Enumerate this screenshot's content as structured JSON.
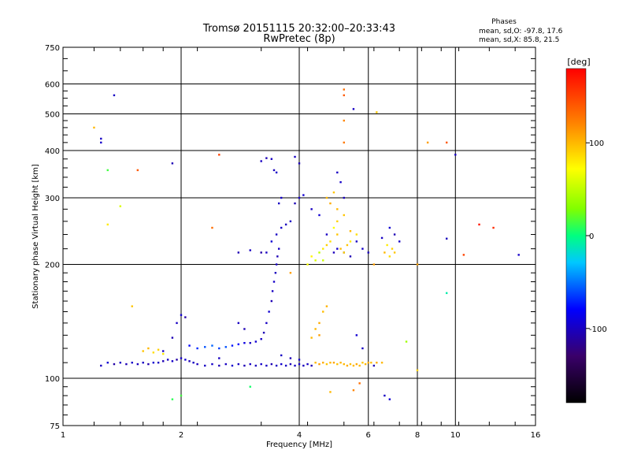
{
  "chart_data": {
    "type": "scatter",
    "title": "Tromsø 20151115 20:32:00–20:33:43",
    "subtitle": "RwPretec (8p)",
    "xlabel": "Frequency [MHz]",
    "ylabel": "Stationary phase Virtual Height [km]",
    "x_scale": "log",
    "y_scale": "log",
    "xlim": [
      1,
      16
    ],
    "ylim": [
      75,
      750
    ],
    "x_ticks": [
      1,
      2,
      4,
      6,
      8,
      10,
      16
    ],
    "x_tick_labels": [
      "1",
      "2",
      "4",
      "6",
      "8",
      "10",
      "16"
    ],
    "y_ticks": [
      75,
      100,
      200,
      300,
      400,
      500,
      600,
      750
    ],
    "y_tick_labels": [
      "75",
      "100",
      "200",
      "300",
      "400",
      "500",
      "600",
      "750"
    ],
    "grid": true,
    "legend": {
      "title": "Phases",
      "entries": [
        "mean, sd,O: -97.8, 17.6",
        "mean, sd,X: 85.8, 21.5"
      ],
      "placement": "top-right"
    },
    "colorbar": {
      "label": "[deg]",
      "range": [
        -180,
        180
      ],
      "ticks": [
        100,
        0,
        -100
      ],
      "tick_labels": [
        "100",
        "0",
        "-100"
      ],
      "colormap": "rainbow"
    },
    "series": [
      {
        "name": "O",
        "phase_mean": -97.8,
        "phase_sd": 17.6,
        "points": [
          [
            1.25,
            108,
            -100
          ],
          [
            1.3,
            110,
            -95
          ],
          [
            1.35,
            109,
            -110
          ],
          [
            1.4,
            110,
            -100
          ],
          [
            1.45,
            109,
            -105
          ],
          [
            1.5,
            110,
            -98
          ],
          [
            1.55,
            109,
            -102
          ],
          [
            1.6,
            110,
            -100
          ],
          [
            1.65,
            109,
            -108
          ],
          [
            1.7,
            110,
            -95
          ],
          [
            1.75,
            110,
            -100
          ],
          [
            1.8,
            111,
            -105
          ],
          [
            1.85,
            112,
            -100
          ],
          [
            1.9,
            111,
            -98
          ],
          [
            1.95,
            112,
            -110
          ],
          [
            2.0,
            113,
            -100
          ],
          [
            2.05,
            112,
            -95
          ],
          [
            2.1,
            111,
            -105
          ],
          [
            2.15,
            110,
            -100
          ],
          [
            2.2,
            109,
            -102
          ],
          [
            2.3,
            108,
            -100
          ],
          [
            2.4,
            109,
            -98
          ],
          [
            2.5,
            108,
            -104
          ],
          [
            2.6,
            109,
            -100
          ],
          [
            2.7,
            108,
            -96
          ],
          [
            2.8,
            109,
            -100
          ],
          [
            2.9,
            108,
            -105
          ],
          [
            3.0,
            109,
            -100
          ],
          [
            3.1,
            108,
            -102
          ],
          [
            3.2,
            109,
            -98
          ],
          [
            3.3,
            108,
            -100
          ],
          [
            3.4,
            109,
            -106
          ],
          [
            3.5,
            108,
            -100
          ],
          [
            3.6,
            109,
            -97
          ],
          [
            3.7,
            108,
            -100
          ],
          [
            3.8,
            109,
            -104
          ],
          [
            3.9,
            108,
            -100
          ],
          [
            4.0,
            109,
            -98
          ],
          [
            4.1,
            108,
            -102
          ],
          [
            4.2,
            109,
            -100
          ],
          [
            4.3,
            108,
            -105
          ],
          [
            1.8,
            118,
            -100
          ],
          [
            1.9,
            128,
            -105
          ],
          [
            1.95,
            140,
            -100
          ],
          [
            2.0,
            147,
            -95
          ],
          [
            2.05,
            145,
            -110
          ],
          [
            2.1,
            122,
            -80
          ],
          [
            2.2,
            120,
            -70
          ],
          [
            2.3,
            121,
            -60
          ],
          [
            2.4,
            122,
            -55
          ],
          [
            2.5,
            120,
            -65
          ],
          [
            2.6,
            121,
            -60
          ],
          [
            2.7,
            122,
            -75
          ],
          [
            2.8,
            123,
            -80
          ],
          [
            2.9,
            124,
            -90
          ],
          [
            3.0,
            124,
            -100
          ],
          [
            3.1,
            125,
            -95
          ],
          [
            3.2,
            127,
            -100
          ],
          [
            3.25,
            132,
            -105
          ],
          [
            3.3,
            140,
            -100
          ],
          [
            3.35,
            150,
            -95
          ],
          [
            3.4,
            160,
            -105
          ],
          [
            3.42,
            170,
            -100
          ],
          [
            3.45,
            180,
            -98
          ],
          [
            3.48,
            190,
            -102
          ],
          [
            3.5,
            200,
            -100
          ],
          [
            3.52,
            210,
            -105
          ],
          [
            3.55,
            220,
            -100
          ],
          [
            3.4,
            230,
            -95
          ],
          [
            3.3,
            215,
            -100
          ],
          [
            3.2,
            215,
            -110
          ],
          [
            3.0,
            218,
            -100
          ],
          [
            2.8,
            215,
            -105
          ],
          [
            3.5,
            240,
            -100
          ],
          [
            3.6,
            250,
            -98
          ],
          [
            3.7,
            255,
            -102
          ],
          [
            3.8,
            260,
            -100
          ],
          [
            3.9,
            290,
            -105
          ],
          [
            4.0,
            300,
            -100
          ],
          [
            4.1,
            305,
            -95
          ],
          [
            3.55,
            290,
            -100
          ],
          [
            3.6,
            300,
            -98
          ],
          [
            3.2,
            375,
            -100
          ],
          [
            3.3,
            382,
            -105
          ],
          [
            3.4,
            380,
            -100
          ],
          [
            3.45,
            355,
            -102
          ],
          [
            3.5,
            350,
            -98
          ],
          [
            3.9,
            385,
            -100
          ],
          [
            4.0,
            370,
            -105
          ],
          [
            4.3,
            280,
            -100
          ],
          [
            4.5,
            270,
            -95
          ],
          [
            4.7,
            240,
            -100
          ],
          [
            4.9,
            215,
            -102
          ],
          [
            5.0,
            220,
            -98
          ],
          [
            5.2,
            215,
            -100
          ],
          [
            5.4,
            210,
            -105
          ],
          [
            5.6,
            230,
            -100
          ],
          [
            5.8,
            220,
            -98
          ],
          [
            6.0,
            215,
            -102
          ],
          [
            6.5,
            235,
            -100
          ],
          [
            6.8,
            250,
            -95
          ],
          [
            7.0,
            240,
            -105
          ],
          [
            7.2,
            230,
            -100
          ],
          [
            3.6,
            115,
            -100
          ],
          [
            3.8,
            113,
            -105
          ],
          [
            4.0,
            112,
            -100
          ],
          [
            5.6,
            130,
            -95
          ],
          [
            5.8,
            120,
            -100
          ],
          [
            6.2,
            108,
            -105
          ],
          [
            5.0,
            350,
            -100
          ],
          [
            5.1,
            330,
            -98
          ],
          [
            5.2,
            300,
            -102
          ],
          [
            2.8,
            140,
            -100
          ],
          [
            2.9,
            135,
            -105
          ],
          [
            6.6,
            90,
            -100
          ],
          [
            6.8,
            88,
            -95
          ],
          [
            2.5,
            113,
            -100
          ],
          [
            10.0,
            390,
            -100
          ],
          [
            14.5,
            212,
            -98
          ],
          [
            9.5,
            234,
            -102
          ],
          [
            1.35,
            560,
            -100
          ],
          [
            1.9,
            370,
            -105
          ],
          [
            1.25,
            430,
            -100
          ],
          [
            1.25,
            420,
            -98
          ],
          [
            5.5,
            515,
            -100
          ]
        ]
      },
      {
        "name": "X",
        "phase_mean": 85.8,
        "phase_sd": 21.5,
        "points": [
          [
            1.6,
            118,
            95
          ],
          [
            1.65,
            120,
            100
          ],
          [
            1.7,
            117,
            85
          ],
          [
            1.75,
            119,
            90
          ],
          [
            1.8,
            116,
            80
          ],
          [
            4.4,
            110,
            100
          ],
          [
            4.5,
            109,
            110
          ],
          [
            4.6,
            110,
            105
          ],
          [
            4.7,
            109,
            95
          ],
          [
            4.8,
            110,
            100
          ],
          [
            4.9,
            110,
            108
          ],
          [
            5.0,
            109,
            96
          ],
          [
            5.1,
            110,
            102
          ],
          [
            5.2,
            109,
            100
          ],
          [
            5.3,
            108,
            104
          ],
          [
            5.4,
            109,
            98
          ],
          [
            5.5,
            108,
            100
          ],
          [
            5.6,
            109,
            106
          ],
          [
            5.7,
            108,
            100
          ],
          [
            5.8,
            110,
            95
          ],
          [
            5.9,
            109,
            100
          ],
          [
            6.0,
            110,
            105
          ],
          [
            6.1,
            110,
            98
          ],
          [
            6.5,
            110,
            100
          ],
          [
            4.4,
            135,
            100
          ],
          [
            4.5,
            140,
            105
          ],
          [
            4.6,
            150,
            98
          ],
          [
            4.7,
            155,
            102
          ],
          [
            4.5,
            130,
            110
          ],
          [
            4.3,
            128,
            100
          ],
          [
            4.6,
            220,
            80
          ],
          [
            4.7,
            225,
            90
          ],
          [
            4.8,
            230,
            85
          ],
          [
            5.0,
            240,
            95
          ],
          [
            5.1,
            220,
            100
          ],
          [
            5.2,
            215,
            90
          ],
          [
            5.3,
            225,
            95
          ],
          [
            5.4,
            230,
            80
          ],
          [
            4.9,
            250,
            70
          ],
          [
            5.0,
            260,
            90
          ],
          [
            5.2,
            270,
            95
          ],
          [
            5.4,
            245,
            100
          ],
          [
            5.6,
            240,
            85
          ],
          [
            6.7,
            225,
            80
          ],
          [
            6.9,
            220,
            90
          ],
          [
            7.0,
            215,
            95
          ],
          [
            6.8,
            210,
            85
          ],
          [
            6.6,
            215,
            100
          ],
          [
            4.2,
            200,
            70
          ],
          [
            4.3,
            210,
            75
          ],
          [
            4.4,
            205,
            60
          ],
          [
            4.5,
            215,
            50
          ],
          [
            4.6,
            205,
            55
          ],
          [
            3.8,
            190,
            110
          ],
          [
            4.7,
            300,
            100
          ],
          [
            4.8,
            290,
            105
          ],
          [
            4.9,
            310,
            95
          ],
          [
            5.0,
            280,
            100
          ],
          [
            5.2,
            580,
            130
          ],
          [
            5.2,
            560,
            140
          ],
          [
            5.2,
            480,
            120
          ],
          [
            5.2,
            420,
            125
          ],
          [
            6.3,
            505,
            95
          ],
          [
            6.2,
            200,
            110
          ],
          [
            6.3,
            110,
            105
          ],
          [
            2.4,
            250,
            130
          ],
          [
            2.5,
            390,
            150
          ],
          [
            1.55,
            355,
            140
          ],
          [
            1.4,
            285,
            60
          ],
          [
            8.5,
            420,
            110
          ],
          [
            9.5,
            420,
            140
          ],
          [
            10.5,
            212,
            150
          ],
          [
            11.5,
            255,
            170
          ],
          [
            12.5,
            250,
            160
          ],
          [
            8.0,
            200,
            110
          ],
          [
            8.0,
            105,
            90
          ],
          [
            7.5,
            125,
            40
          ],
          [
            9.5,
            168,
            -10
          ],
          [
            3.0,
            95,
            5
          ],
          [
            1.5,
            155,
            95
          ],
          [
            5.5,
            93,
            120
          ],
          [
            5.7,
            97,
            130
          ],
          [
            4.8,
            92,
            100
          ],
          [
            1.3,
            255,
            80
          ],
          [
            1.2,
            460,
            100
          ],
          [
            2.0,
            90,
            15
          ],
          [
            1.9,
            88,
            10
          ],
          [
            1.3,
            355,
            15
          ]
        ]
      }
    ]
  }
}
